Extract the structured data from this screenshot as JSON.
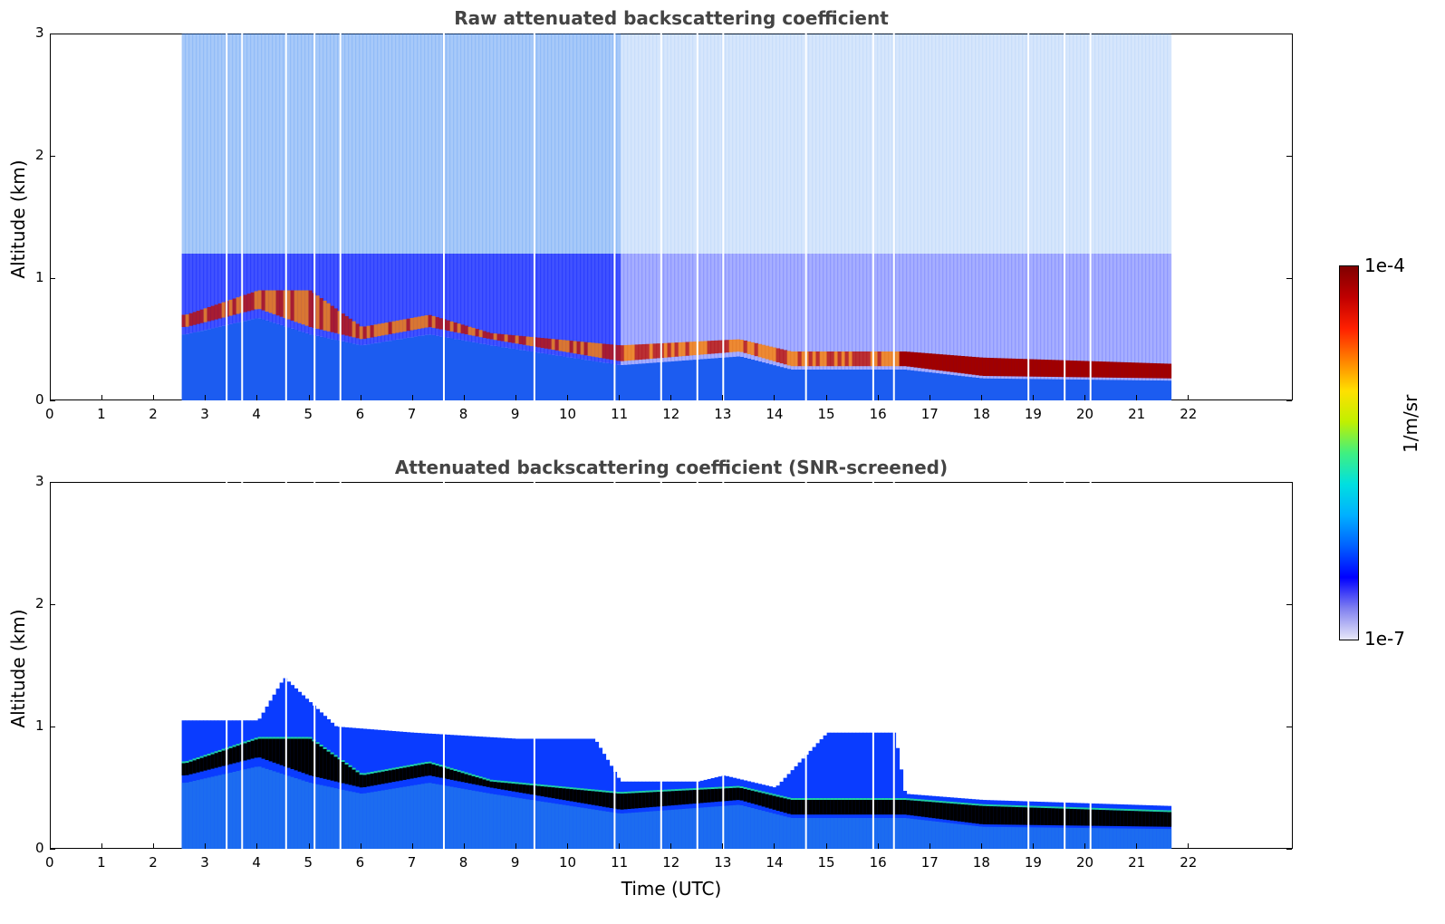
{
  "chart_data": [
    {
      "type": "heatmap",
      "title": "Raw attenuated backscattering coefficient",
      "xlabel": "",
      "ylabel": "Altitude (km)",
      "xlim": [
        0,
        24
      ],
      "ylim": [
        0,
        3
      ],
      "x_ticks": [
        "0",
        "1",
        "2",
        "3",
        "4",
        "5",
        "6",
        "7",
        "8",
        "9",
        "10",
        "11",
        "12",
        "13",
        "14",
        "15",
        "16",
        "17",
        "18",
        "19",
        "20",
        "21",
        "22"
      ],
      "y_ticks": [
        "0",
        "1",
        "2",
        "3"
      ],
      "data_time_range": [
        2.55,
        21.65
      ],
      "cloud_layer": [
        {
          "t": 2.6,
          "base": 0.6,
          "top": 0.7
        },
        {
          "t": 4.0,
          "base": 0.75,
          "top": 0.9
        },
        {
          "t": 5.0,
          "base": 0.6,
          "top": 0.9
        },
        {
          "t": 6.0,
          "base": 0.5,
          "top": 0.6
        },
        {
          "t": 7.3,
          "base": 0.6,
          "top": 0.7
        },
        {
          "t": 8.5,
          "base": 0.5,
          "top": 0.55
        },
        {
          "t": 11.0,
          "base": 0.32,
          "top": 0.45
        },
        {
          "t": 13.3,
          "base": 0.4,
          "top": 0.5
        },
        {
          "t": 14.3,
          "base": 0.28,
          "top": 0.4
        },
        {
          "t": 16.5,
          "base": 0.28,
          "top": 0.4
        },
        {
          "t": 18.0,
          "base": 0.2,
          "top": 0.35
        },
        {
          "t": 21.6,
          "base": 0.18,
          "top": 0.3
        }
      ]
    },
    {
      "type": "heatmap",
      "title": "Attenuated backscattering coefficient (SNR-screened)",
      "xlabel": "Time (UTC)",
      "ylabel": "Altitude (km)",
      "xlim": [
        0,
        24
      ],
      "ylim": [
        0,
        3
      ],
      "x_ticks": [
        "0",
        "1",
        "2",
        "3",
        "4",
        "5",
        "6",
        "7",
        "8",
        "9",
        "10",
        "11",
        "12",
        "13",
        "14",
        "15",
        "16",
        "17",
        "18",
        "19",
        "20",
        "21",
        "22"
      ],
      "y_ticks": [
        "0",
        "1",
        "2",
        "3"
      ],
      "data_time_range": [
        2.55,
        21.65
      ],
      "signal_top": [
        {
          "t": 2.55,
          "top": 1.05
        },
        {
          "t": 4.0,
          "top": 1.05
        },
        {
          "t": 4.5,
          "top": 1.4
        },
        {
          "t": 5.5,
          "top": 1.0
        },
        {
          "t": 7.0,
          "top": 0.95
        },
        {
          "t": 9.0,
          "top": 0.9
        },
        {
          "t": 10.5,
          "top": 0.9
        },
        {
          "t": 11.0,
          "top": 0.55
        },
        {
          "t": 12.5,
          "top": 0.55
        },
        {
          "t": 13.0,
          "top": 0.6
        },
        {
          "t": 14.0,
          "top": 0.5
        },
        {
          "t": 15.0,
          "top": 0.95
        },
        {
          "t": 16.3,
          "top": 0.95
        },
        {
          "t": 16.5,
          "top": 0.45
        },
        {
          "t": 18.0,
          "top": 0.4
        },
        {
          "t": 21.65,
          "top": 0.35
        }
      ]
    }
  ],
  "colorbar": {
    "max_label": "1e-4",
    "min_label": "1e-7",
    "unit": "1/m/sr",
    "colors": [
      "#e8e8f8",
      "#8080f0",
      "#0000ff",
      "#0060ff",
      "#00b0ff",
      "#00e0e0",
      "#40f080",
      "#c0f000",
      "#ffe000",
      "#ff8000",
      "#ff2000",
      "#c00000",
      "#800000"
    ]
  }
}
